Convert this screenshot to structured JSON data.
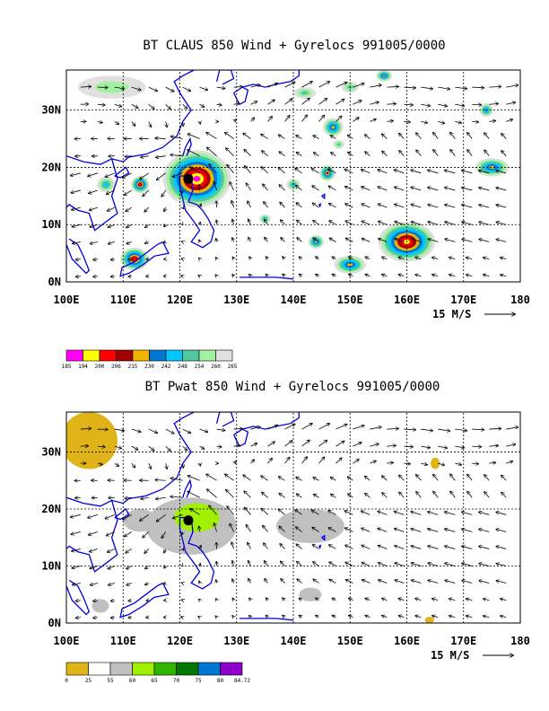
{
  "chart_data": [
    {
      "type": "heatmap",
      "title": "BT CLAUS 850 Wind + Gyrelocs 991005/0000",
      "x_ticks": [
        "100E",
        "110E",
        "120E",
        "130E",
        "140E",
        "150E",
        "160E",
        "170E",
        "180"
      ],
      "y_ticks": [
        "0N",
        "10N",
        "20N",
        "30N"
      ],
      "xlim": [
        100,
        180
      ],
      "ylim": [
        0,
        37
      ],
      "vector_reference": "15 M/S",
      "colorbar": {
        "labels": [
          "185",
          "194",
          "200",
          "206",
          "215",
          "230",
          "242",
          "248",
          "254",
          "260",
          "265"
        ],
        "colors": [
          "#ff00ff",
          "#ffff00",
          "#ff0000",
          "#a00000",
          "#f0b400",
          "#0078d2",
          "#00c8ff",
          "#50c8a0",
          "#a0f0a0",
          "#e0e0e0"
        ]
      },
      "regions": [
        {
          "lon": 123,
          "lat": 18,
          "rx": 6,
          "ry": 5,
          "level": 9
        },
        {
          "lon": 113,
          "lat": 17,
          "rx": 1.6,
          "ry": 1.5,
          "level": 7
        },
        {
          "lon": 112,
          "lat": 4,
          "rx": 2.5,
          "ry": 2,
          "level": 7
        },
        {
          "lon": 160,
          "lat": 7,
          "rx": 5,
          "ry": 3.5,
          "level": 8
        },
        {
          "lon": 146,
          "lat": 19,
          "rx": 1.4,
          "ry": 1.4,
          "level": 6
        },
        {
          "lon": 144,
          "lat": 7,
          "rx": 1.4,
          "ry": 1.2,
          "level": 5
        },
        {
          "lon": 150,
          "lat": 3,
          "rx": 2.8,
          "ry": 1.6,
          "level": 5
        },
        {
          "lon": 175,
          "lat": 20,
          "rx": 3,
          "ry": 1.6,
          "level": 5
        },
        {
          "lon": 147,
          "lat": 27,
          "rx": 1.8,
          "ry": 1.6,
          "level": 5
        },
        {
          "lon": 174,
          "lat": 30,
          "rx": 1.2,
          "ry": 1.2,
          "level": 4
        },
        {
          "lon": 156,
          "lat": 36,
          "rx": 1.4,
          "ry": 1,
          "level": 5
        },
        {
          "lon": 107,
          "lat": 17,
          "rx": 1.6,
          "ry": 1.4,
          "level": 3
        },
        {
          "lon": 142,
          "lat": 33,
          "rx": 2,
          "ry": 1,
          "level": 2
        },
        {
          "lon": 150,
          "lat": 34,
          "rx": 1.5,
          "ry": 1,
          "level": 2
        },
        {
          "lon": 108,
          "lat": 34,
          "rx": 6,
          "ry": 2,
          "level": 1
        },
        {
          "lon": 140,
          "lat": 17,
          "rx": 1.2,
          "ry": 1,
          "level": 3
        },
        {
          "lon": 135,
          "lat": 11,
          "rx": 1,
          "ry": 0.8,
          "level": 3
        },
        {
          "lon": 148,
          "lat": 24,
          "rx": 1,
          "ry": 0.8,
          "level": 2
        }
      ],
      "storm_center": {
        "lon": 121.5,
        "lat": 18
      }
    },
    {
      "type": "heatmap",
      "title": "BT Pwat 850 Wind + Gyrelocs 991005/0000",
      "x_ticks": [
        "100E",
        "110E",
        "120E",
        "130E",
        "140E",
        "150E",
        "160E",
        "170E",
        "180"
      ],
      "y_ticks": [
        "0N",
        "10N",
        "20N",
        "30N"
      ],
      "xlim": [
        100,
        180
      ],
      "ylim": [
        0,
        37
      ],
      "vector_reference": "15 M/S",
      "colorbar": {
        "labels": [
          "0",
          "25",
          "55",
          "60",
          "65",
          "70",
          "75",
          "80",
          "84.72"
        ],
        "colors": [
          "#e0b418",
          "#ffffff",
          "#c0c0c0",
          "#a0f000",
          "#30b400",
          "#007800",
          "#0078d2",
          "#8c00c8"
        ]
      },
      "regions": [
        {
          "lon": 104,
          "lat": 32,
          "rx": 5,
          "ry": 5,
          "level": 0
        },
        {
          "lon": 122,
          "lat": 17,
          "rx": 8,
          "ry": 5,
          "level": 2
        },
        {
          "lon": 143,
          "lat": 17,
          "rx": 6,
          "ry": 3,
          "level": 2
        },
        {
          "lon": 113,
          "lat": 18,
          "rx": 3,
          "ry": 2,
          "level": 2
        },
        {
          "lon": 123,
          "lat": 18.5,
          "rx": 4,
          "ry": 2.5,
          "level": 3
        },
        {
          "lon": 143,
          "lat": 5,
          "rx": 2,
          "ry": 1.2,
          "level": 2
        },
        {
          "lon": 106,
          "lat": 3,
          "rx": 1.5,
          "ry": 1.2,
          "level": 2
        },
        {
          "lon": 165,
          "lat": 28,
          "rx": 0.8,
          "ry": 1,
          "level": 0
        },
        {
          "lon": 164,
          "lat": 0.5,
          "rx": 0.8,
          "ry": 0.6,
          "level": 0
        }
      ],
      "storm_center": {
        "lon": 121.5,
        "lat": 18
      }
    }
  ]
}
